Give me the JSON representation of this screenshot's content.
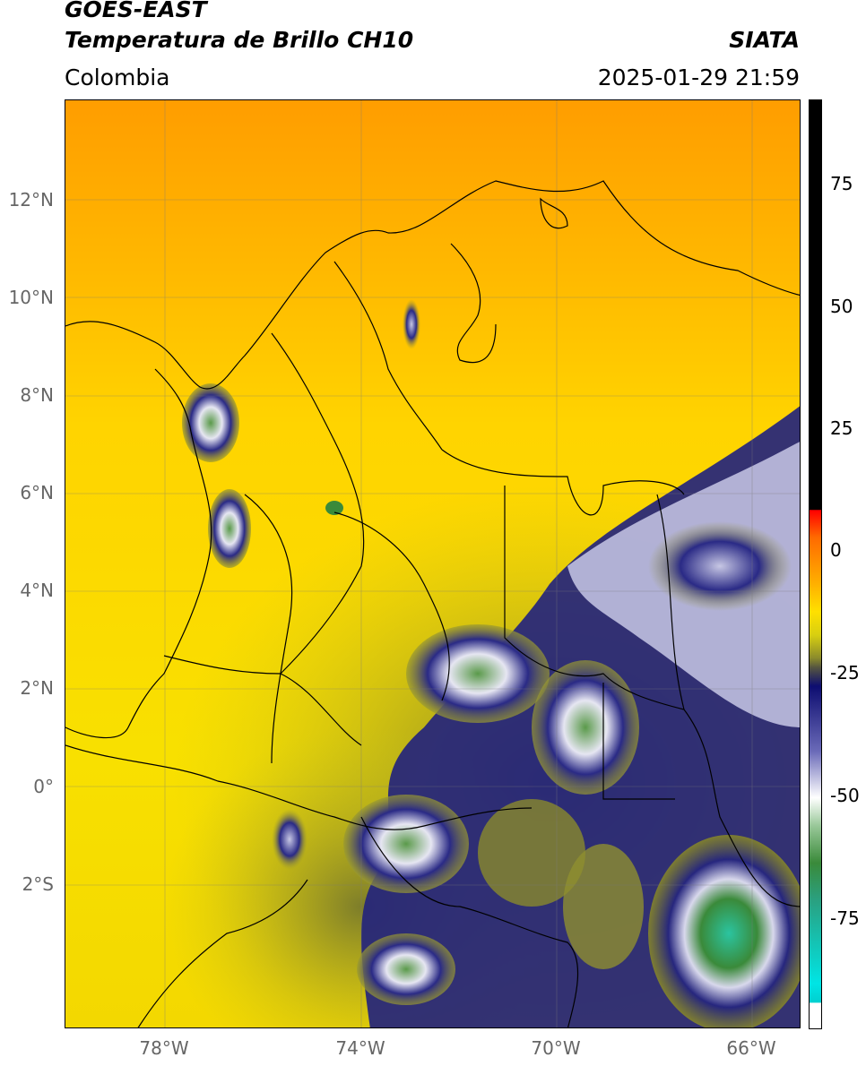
{
  "header": {
    "satellite": "GOES-EAST",
    "product": "Temperatura de Brillo CH10",
    "agency": "SIATA",
    "region": "Colombia",
    "datetime": "2025-01-29 21:59"
  },
  "map": {
    "lat_labels": [
      "12°N",
      "10°N",
      "8°N",
      "6°N",
      "4°N",
      "2°N",
      "0°",
      "2°S"
    ],
    "lon_labels": [
      "78°W",
      "74°W",
      "70°W",
      "66°W"
    ],
    "colors": {
      "background_warm": "#f5cc00",
      "cold_cloud": "#1c1c7a",
      "very_cold": "#3a8a3a"
    }
  },
  "colorbar": {
    "tick_labels": [
      "75",
      "50",
      "25",
      "0",
      "-25",
      "-50",
      "-75"
    ],
    "unit_hint": "brightness temperature"
  }
}
